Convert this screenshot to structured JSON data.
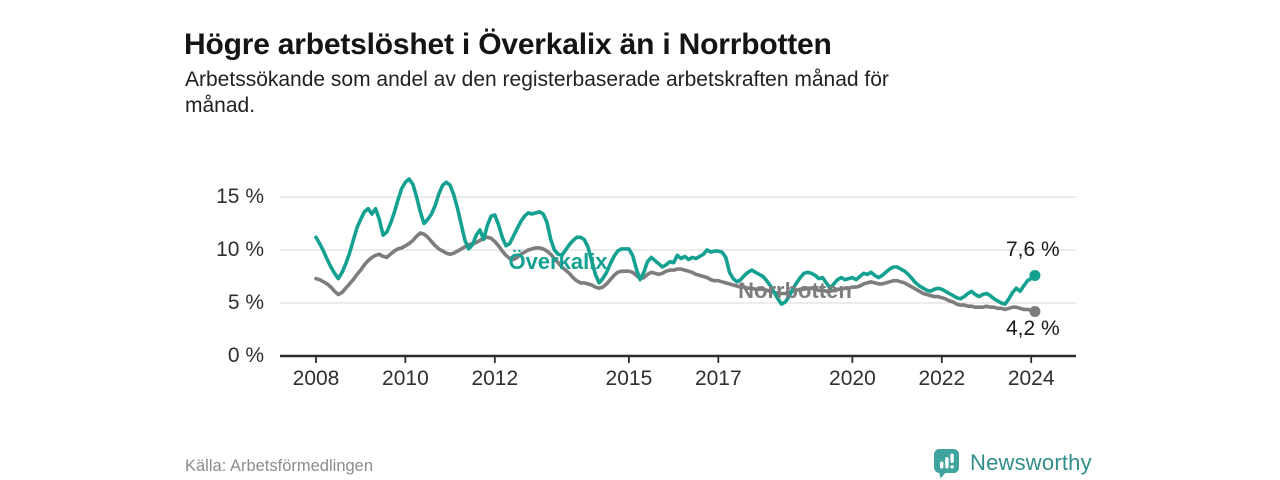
{
  "header": {
    "title": "Högre arbetslöshet i Överkalix än i Norrbotten",
    "subtitle_lines": [
      "Arbetssökande som andel av den registerbaserade arbetskraften månad för",
      "månad."
    ]
  },
  "footer": {
    "source": "Källa: Arbetsförmedlingen",
    "brand_name": "Newsworthy",
    "brand_icon": "newsworthy-speech-bubble-bar-chart-icon"
  },
  "colors": {
    "overkalix_teal": "#15a191",
    "norrbotten_gray": "#7d7d7d",
    "grid": "#e0e0e0",
    "axis": "#2b2b2b",
    "tick_text": "#2f2f2f",
    "title_text": "#141414",
    "source_text": "#8c8c8c",
    "logo_teal": "#3fa39e",
    "logo_text_teal": "#2f8e89",
    "end_label_text": "#1a1a1a"
  },
  "chart_data": {
    "type": "line",
    "title": "Högre arbetslöshet i Överkalix än i Norrbotten",
    "subtitle": "Arbetssökande som andel av den registerbaserade arbetskraften månad för månad.",
    "unit": "%",
    "frequency": "monthly",
    "x_start": {
      "year": 2008,
      "month": 1
    },
    "x_end": {
      "year": 2024,
      "month": 2
    },
    "xlim": [
      2007.2,
      2025.0
    ],
    "ylim": [
      0,
      18
    ],
    "grid": "horizontal",
    "legend_position": "inline-labels",
    "y_ticks": [
      {
        "value": 0,
        "label": "0 %"
      },
      {
        "value": 5,
        "label": "5 %"
      },
      {
        "value": 10,
        "label": "10 %"
      },
      {
        "value": 15,
        "label": "15 %"
      }
    ],
    "x_ticks": [
      {
        "value": 2008,
        "label": "2008"
      },
      {
        "value": 2010,
        "label": "2010"
      },
      {
        "value": 2012,
        "label": "2012"
      },
      {
        "value": 2015,
        "label": "2015"
      },
      {
        "value": 2017,
        "label": "2017"
      },
      {
        "value": 2020,
        "label": "2020"
      },
      {
        "value": 2022,
        "label": "2022"
      },
      {
        "value": 2024,
        "label": "2024"
      }
    ],
    "series": [
      {
        "name": "Överkalix",
        "color": "#15a191",
        "end_label": "7,6 %",
        "last_value": 7.6,
        "values": [
          11.2,
          10.6,
          9.9,
          9.1,
          8.4,
          7.8,
          7.3,
          7.9,
          8.7,
          9.7,
          10.9,
          12.1,
          12.9,
          13.6,
          13.9,
          13.4,
          13.9,
          12.9,
          11.4,
          11.7,
          12.5,
          13.5,
          14.7,
          15.8,
          16.4,
          16.7,
          16.2,
          15.0,
          13.6,
          12.5,
          12.9,
          13.4,
          14.2,
          15.3,
          16.1,
          16.4,
          16.1,
          15.2,
          13.9,
          12.4,
          10.9,
          10.1,
          10.5,
          11.4,
          11.9,
          11.0,
          12.3,
          13.2,
          13.3,
          12.4,
          11.2,
          10.4,
          10.6,
          11.3,
          12.0,
          12.7,
          13.2,
          13.5,
          13.4,
          13.5,
          13.6,
          13.4,
          12.6,
          11.0,
          10.0,
          9.6,
          9.5,
          10.0,
          10.5,
          10.9,
          11.2,
          11.2,
          11.0,
          10.3,
          9.0,
          7.7,
          6.9,
          7.3,
          7.9,
          8.7,
          9.4,
          9.9,
          10.1,
          10.1,
          10.1,
          9.5,
          8.2,
          7.2,
          7.9,
          8.9,
          9.3,
          9.0,
          8.7,
          8.4,
          8.6,
          8.9,
          8.8,
          9.5,
          9.2,
          9.4,
          9.1,
          9.3,
          9.2,
          9.4,
          9.6,
          10.0,
          9.8,
          9.9,
          9.9,
          9.8,
          9.3,
          7.9,
          7.3,
          7.0,
          7.2,
          7.6,
          7.9,
          8.1,
          7.9,
          7.7,
          7.5,
          7.1,
          6.6,
          6.0,
          5.4,
          4.9,
          5.1,
          5.6,
          6.3,
          6.9,
          7.4,
          7.8,
          7.9,
          7.8,
          7.6,
          7.3,
          7.4,
          6.9,
          6.4,
          6.8,
          7.2,
          7.4,
          7.2,
          7.3,
          7.4,
          7.2,
          7.5,
          7.8,
          7.7,
          7.9,
          7.6,
          7.4,
          7.6,
          7.9,
          8.2,
          8.4,
          8.4,
          8.2,
          8.0,
          7.7,
          7.3,
          6.9,
          6.6,
          6.4,
          6.2,
          6.1,
          6.3,
          6.4,
          6.3,
          6.1,
          5.9,
          5.7,
          5.5,
          5.4,
          5.6,
          5.9,
          6.1,
          5.8,
          5.6,
          5.8,
          5.9,
          5.7,
          5.4,
          5.2,
          5.0,
          4.9,
          5.4,
          6.0,
          6.4,
          6.1,
          6.6,
          7.1,
          7.3,
          7.6
        ]
      },
      {
        "name": "Norrbotten",
        "color": "#7d7d7d",
        "end_label": "4,2 %",
        "last_value": 4.2,
        "values": [
          7.3,
          7.2,
          7.0,
          6.8,
          6.5,
          6.1,
          5.8,
          6.0,
          6.4,
          6.8,
          7.2,
          7.7,
          8.1,
          8.6,
          9.0,
          9.3,
          9.5,
          9.6,
          9.4,
          9.3,
          9.6,
          9.9,
          10.1,
          10.2,
          10.4,
          10.6,
          10.9,
          11.3,
          11.6,
          11.5,
          11.2,
          10.8,
          10.4,
          10.1,
          9.9,
          9.7,
          9.6,
          9.7,
          9.9,
          10.1,
          10.3,
          10.5,
          10.6,
          10.7,
          10.9,
          11.1,
          11.2,
          11.1,
          10.8,
          10.4,
          9.9,
          9.5,
          9.2,
          9.1,
          9.3,
          9.6,
          9.8,
          10.0,
          10.1,
          10.2,
          10.2,
          10.1,
          9.9,
          9.6,
          9.2,
          8.8,
          8.4,
          8.1,
          7.8,
          7.4,
          7.1,
          6.9,
          6.9,
          6.8,
          6.7,
          6.5,
          6.4,
          6.5,
          6.8,
          7.2,
          7.6,
          7.9,
          8.0,
          8.0,
          8.0,
          7.9,
          7.6,
          7.3,
          7.4,
          7.7,
          7.9,
          7.8,
          7.7,
          7.8,
          8.0,
          8.1,
          8.1,
          8.2,
          8.2,
          8.1,
          8.0,
          7.9,
          7.7,
          7.6,
          7.5,
          7.4,
          7.2,
          7.1,
          7.1,
          7.0,
          6.9,
          6.8,
          6.7,
          6.6,
          6.5,
          6.5,
          6.4,
          6.4,
          6.3,
          6.3,
          6.3,
          6.2,
          6.1,
          6.0,
          5.9,
          5.9,
          5.9,
          6.0,
          6.1,
          6.2,
          6.3,
          6.3,
          6.4,
          6.4,
          6.3,
          6.2,
          6.2,
          6.1,
          6.1,
          6.2,
          6.3,
          6.3,
          6.4,
          6.4,
          6.5,
          6.5,
          6.6,
          6.8,
          6.9,
          7.0,
          6.9,
          6.8,
          6.8,
          6.9,
          7.0,
          7.1,
          7.1,
          7.0,
          6.9,
          6.7,
          6.5,
          6.3,
          6.1,
          5.9,
          5.8,
          5.7,
          5.6,
          5.6,
          5.5,
          5.4,
          5.2,
          5.1,
          4.9,
          4.8,
          4.8,
          4.7,
          4.7,
          4.6,
          4.6,
          4.6,
          4.7,
          4.6,
          4.6,
          4.5,
          4.5,
          4.4,
          4.5,
          4.6,
          4.6,
          4.5,
          4.4,
          4.4,
          4.3,
          4.2
        ]
      }
    ]
  }
}
